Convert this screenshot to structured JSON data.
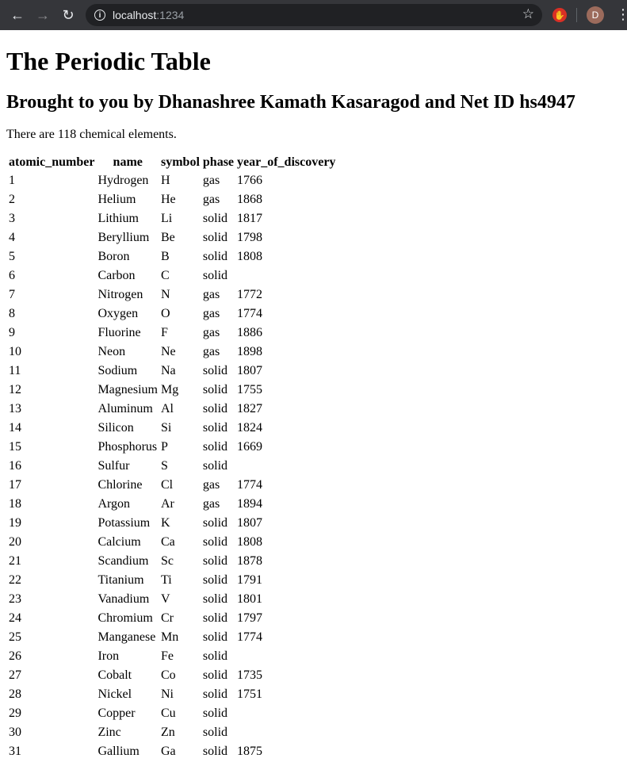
{
  "browser": {
    "url_host": "localhost",
    "url_port": ":1234",
    "avatar_letter": "D"
  },
  "page": {
    "title": "The Periodic Table",
    "subtitle": "Brought to you by Dhanashree Kamath Kasaragod and Net ID hs4947",
    "summary": "There are 118 chemical elements."
  },
  "table": {
    "columns": [
      "atomic_number",
      "name",
      "symbol",
      "phase",
      "year_of_discovery"
    ],
    "rows": [
      [
        "1",
        "Hydrogen",
        "H",
        "gas",
        "1766"
      ],
      [
        "2",
        "Helium",
        "He",
        "gas",
        "1868"
      ],
      [
        "3",
        "Lithium",
        "Li",
        "solid",
        "1817"
      ],
      [
        "4",
        "Beryllium",
        "Be",
        "solid",
        "1798"
      ],
      [
        "5",
        "Boron",
        "B",
        "solid",
        "1808"
      ],
      [
        "6",
        "Carbon",
        "C",
        "solid",
        ""
      ],
      [
        "7",
        "Nitrogen",
        "N",
        "gas",
        "1772"
      ],
      [
        "8",
        "Oxygen",
        "O",
        "gas",
        "1774"
      ],
      [
        "9",
        "Fluorine",
        "F",
        "gas",
        "1886"
      ],
      [
        "10",
        "Neon",
        "Ne",
        "gas",
        "1898"
      ],
      [
        "11",
        "Sodium",
        "Na",
        "solid",
        "1807"
      ],
      [
        "12",
        "Magnesium",
        "Mg",
        "solid",
        "1755"
      ],
      [
        "13",
        "Aluminum",
        "Al",
        "solid",
        "1827"
      ],
      [
        "14",
        "Silicon",
        "Si",
        "solid",
        "1824"
      ],
      [
        "15",
        "Phosphorus",
        "P",
        "solid",
        "1669"
      ],
      [
        "16",
        "Sulfur",
        "S",
        "solid",
        ""
      ],
      [
        "17",
        "Chlorine",
        "Cl",
        "gas",
        "1774"
      ],
      [
        "18",
        "Argon",
        "Ar",
        "gas",
        "1894"
      ],
      [
        "19",
        "Potassium",
        "K",
        "solid",
        "1807"
      ],
      [
        "20",
        "Calcium",
        "Ca",
        "solid",
        "1808"
      ],
      [
        "21",
        "Scandium",
        "Sc",
        "solid",
        "1878"
      ],
      [
        "22",
        "Titanium",
        "Ti",
        "solid",
        "1791"
      ],
      [
        "23",
        "Vanadium",
        "V",
        "solid",
        "1801"
      ],
      [
        "24",
        "Chromium",
        "Cr",
        "solid",
        "1797"
      ],
      [
        "25",
        "Manganese",
        "Mn",
        "solid",
        "1774"
      ],
      [
        "26",
        "Iron",
        "Fe",
        "solid",
        ""
      ],
      [
        "27",
        "Cobalt",
        "Co",
        "solid",
        "1735"
      ],
      [
        "28",
        "Nickel",
        "Ni",
        "solid",
        "1751"
      ],
      [
        "29",
        "Copper",
        "Cu",
        "solid",
        ""
      ],
      [
        "30",
        "Zinc",
        "Zn",
        "solid",
        ""
      ],
      [
        "31",
        "Gallium",
        "Ga",
        "solid",
        "1875"
      ]
    ]
  }
}
